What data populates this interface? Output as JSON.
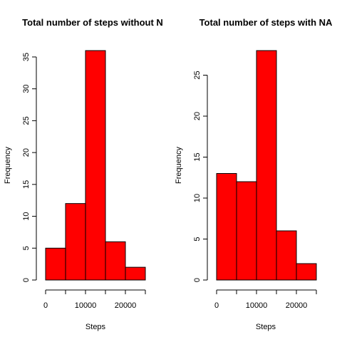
{
  "chart_data": [
    {
      "type": "bar",
      "title": "Total number of steps without N",
      "xlabel": "Steps",
      "ylabel": "Frequency",
      "bins": [
        {
          "from": 0,
          "to": 5000,
          "value": 5
        },
        {
          "from": 5000,
          "to": 10000,
          "value": 12
        },
        {
          "from": 10000,
          "to": 15000,
          "value": 36
        },
        {
          "from": 15000,
          "to": 20000,
          "value": 6
        },
        {
          "from": 20000,
          "to": 25000,
          "value": 2
        }
      ],
      "xticks": [
        0,
        5000,
        10000,
        15000,
        20000,
        25000
      ],
      "xtick_labels": [
        "0",
        "",
        "10000",
        "",
        "20000",
        ""
      ],
      "xlim": [
        0,
        25000
      ],
      "yticks": [
        0,
        5,
        10,
        15,
        20,
        25,
        30,
        35
      ],
      "ylim": [
        0,
        36
      ],
      "bar_color": "#ff0000"
    },
    {
      "type": "bar",
      "title": "Total number of steps with NA",
      "xlabel": "Steps",
      "ylabel": "Frequency",
      "bins": [
        {
          "from": 0,
          "to": 5000,
          "value": 13
        },
        {
          "from": 5000,
          "to": 10000,
          "value": 12
        },
        {
          "from": 10000,
          "to": 15000,
          "value": 28
        },
        {
          "from": 15000,
          "to": 20000,
          "value": 6
        },
        {
          "from": 20000,
          "to": 25000,
          "value": 2
        }
      ],
      "xticks": [
        0,
        5000,
        10000,
        15000,
        20000,
        25000
      ],
      "xtick_labels": [
        "0",
        "",
        "10000",
        "",
        "20000",
        ""
      ],
      "xlim": [
        0,
        25000
      ],
      "yticks": [
        0,
        5,
        10,
        15,
        20,
        25
      ],
      "ylim": [
        0,
        28
      ],
      "bar_color": "#ff0000"
    }
  ]
}
